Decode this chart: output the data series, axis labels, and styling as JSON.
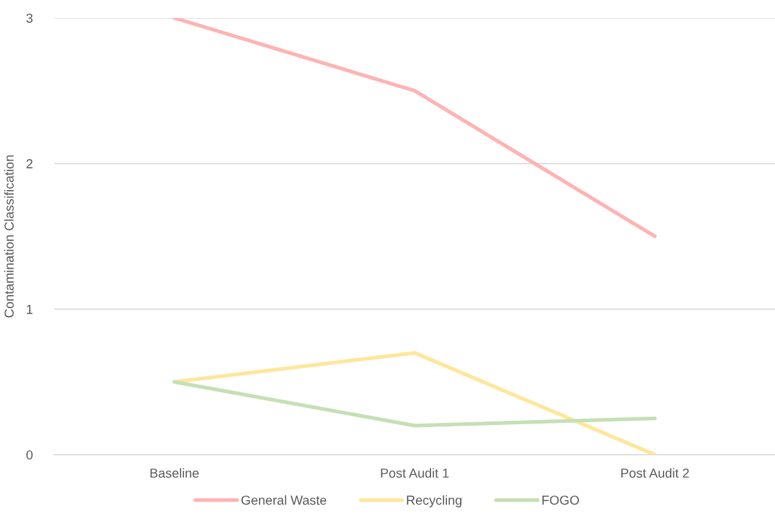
{
  "chart_data": {
    "type": "line",
    "ylabel": "Contamination Classification",
    "categories": [
      "Baseline",
      "Post Audit 1",
      "Post Audit 2"
    ],
    "series": [
      {
        "name": "General Waste",
        "color": "#ffb3b3",
        "values": [
          3,
          2.5,
          1.5
        ]
      },
      {
        "name": "Recycling",
        "color": "#ffe699",
        "values": [
          0.5,
          0.7,
          0
        ]
      },
      {
        "name": "FOGO",
        "color": "#c5e0b4",
        "values": [
          0.5,
          0.2,
          0.25
        ]
      }
    ],
    "ylim": [
      0,
      3
    ],
    "yticks": [
      0,
      1,
      2,
      3
    ],
    "grid": "y",
    "legend": "bottom",
    "marker": "none",
    "line_style": "solid"
  }
}
